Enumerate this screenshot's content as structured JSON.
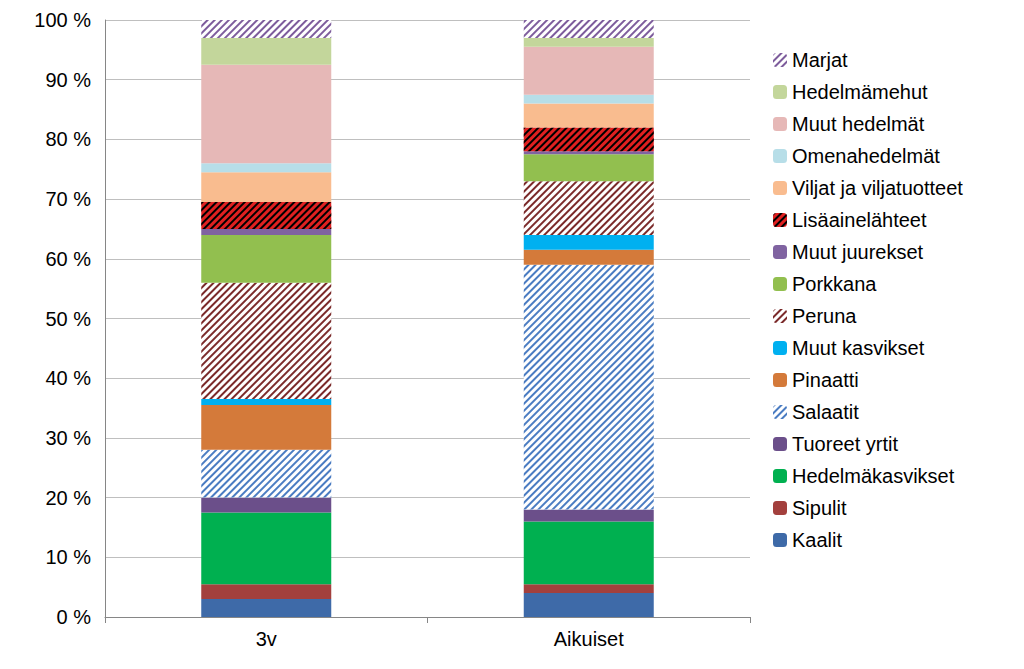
{
  "chart_data": {
    "type": "bar",
    "stacked": true,
    "grid": true,
    "legend": "right",
    "categories": [
      "3v",
      "Aikuiset"
    ],
    "ylim": [
      0,
      100
    ],
    "yticks": [
      {
        "value": 0,
        "label": "0 %"
      },
      {
        "value": 10,
        "label": "10 %"
      },
      {
        "value": 20,
        "label": "20 %"
      },
      {
        "value": 30,
        "label": "30 %"
      },
      {
        "value": 40,
        "label": "40 %"
      },
      {
        "value": 50,
        "label": "50 %"
      },
      {
        "value": 60,
        "label": "60 %"
      },
      {
        "value": 70,
        "label": "70 %"
      },
      {
        "value": 80,
        "label": "80 %"
      },
      {
        "value": 90,
        "label": "90 %"
      },
      {
        "value": 100,
        "label": "100 %"
      }
    ],
    "series": [
      {
        "name": "Kaalit",
        "color": "#3e6aa8",
        "values": [
          3,
          4
        ]
      },
      {
        "name": "Sipulit",
        "color": "#a3403d",
        "values": [
          2.5,
          1.5
        ]
      },
      {
        "name": "Hedelmäkasvikset",
        "color": "#00b050",
        "values": [
          12,
          10.5
        ]
      },
      {
        "name": "Tuoreet yrtit",
        "color": "#6b4f8a",
        "values": [
          2.5,
          2
        ]
      },
      {
        "name": "Salaatit",
        "color": "#4a7cc2",
        "values": [
          8,
          41
        ]
      },
      {
        "name": "Pinaatti",
        "color": "#d47a3a",
        "values": [
          7.5,
          2.5
        ]
      },
      {
        "name": "Muut kasvikset",
        "color": "#00b0f0",
        "values": [
          1,
          2.5
        ]
      },
      {
        "name": "Peruna",
        "color": "#7b2a2a",
        "values": [
          19.5,
          9
        ]
      },
      {
        "name": "Porkkana",
        "color": "#92bf4f",
        "values": [
          8,
          4.5
        ]
      },
      {
        "name": "Muut juurekset",
        "color": "#8063a1",
        "values": [
          1,
          0.5
        ]
      },
      {
        "name": "Lisäainelähteet",
        "color": "#e02020",
        "values": [
          4.5,
          4
        ]
      },
      {
        "name": "Viljat ja viljatuotteet",
        "color": "#f9bc8f",
        "values": [
          5,
          4
        ]
      },
      {
        "name": "Omenahedelmät",
        "color": "#b7dee8",
        "values": [
          1.5,
          1.5
        ]
      },
      {
        "name": "Muut hedelmät",
        "color": "#e6b8b7",
        "values": [
          16.5,
          8
        ]
      },
      {
        "name": "Hedelmämehut",
        "color": "#c3d69b",
        "values": [
          4.5,
          1.5
        ]
      },
      {
        "name": "Marjat",
        "color": "#7d5c9c",
        "values": [
          3,
          3
        ]
      }
    ]
  }
}
